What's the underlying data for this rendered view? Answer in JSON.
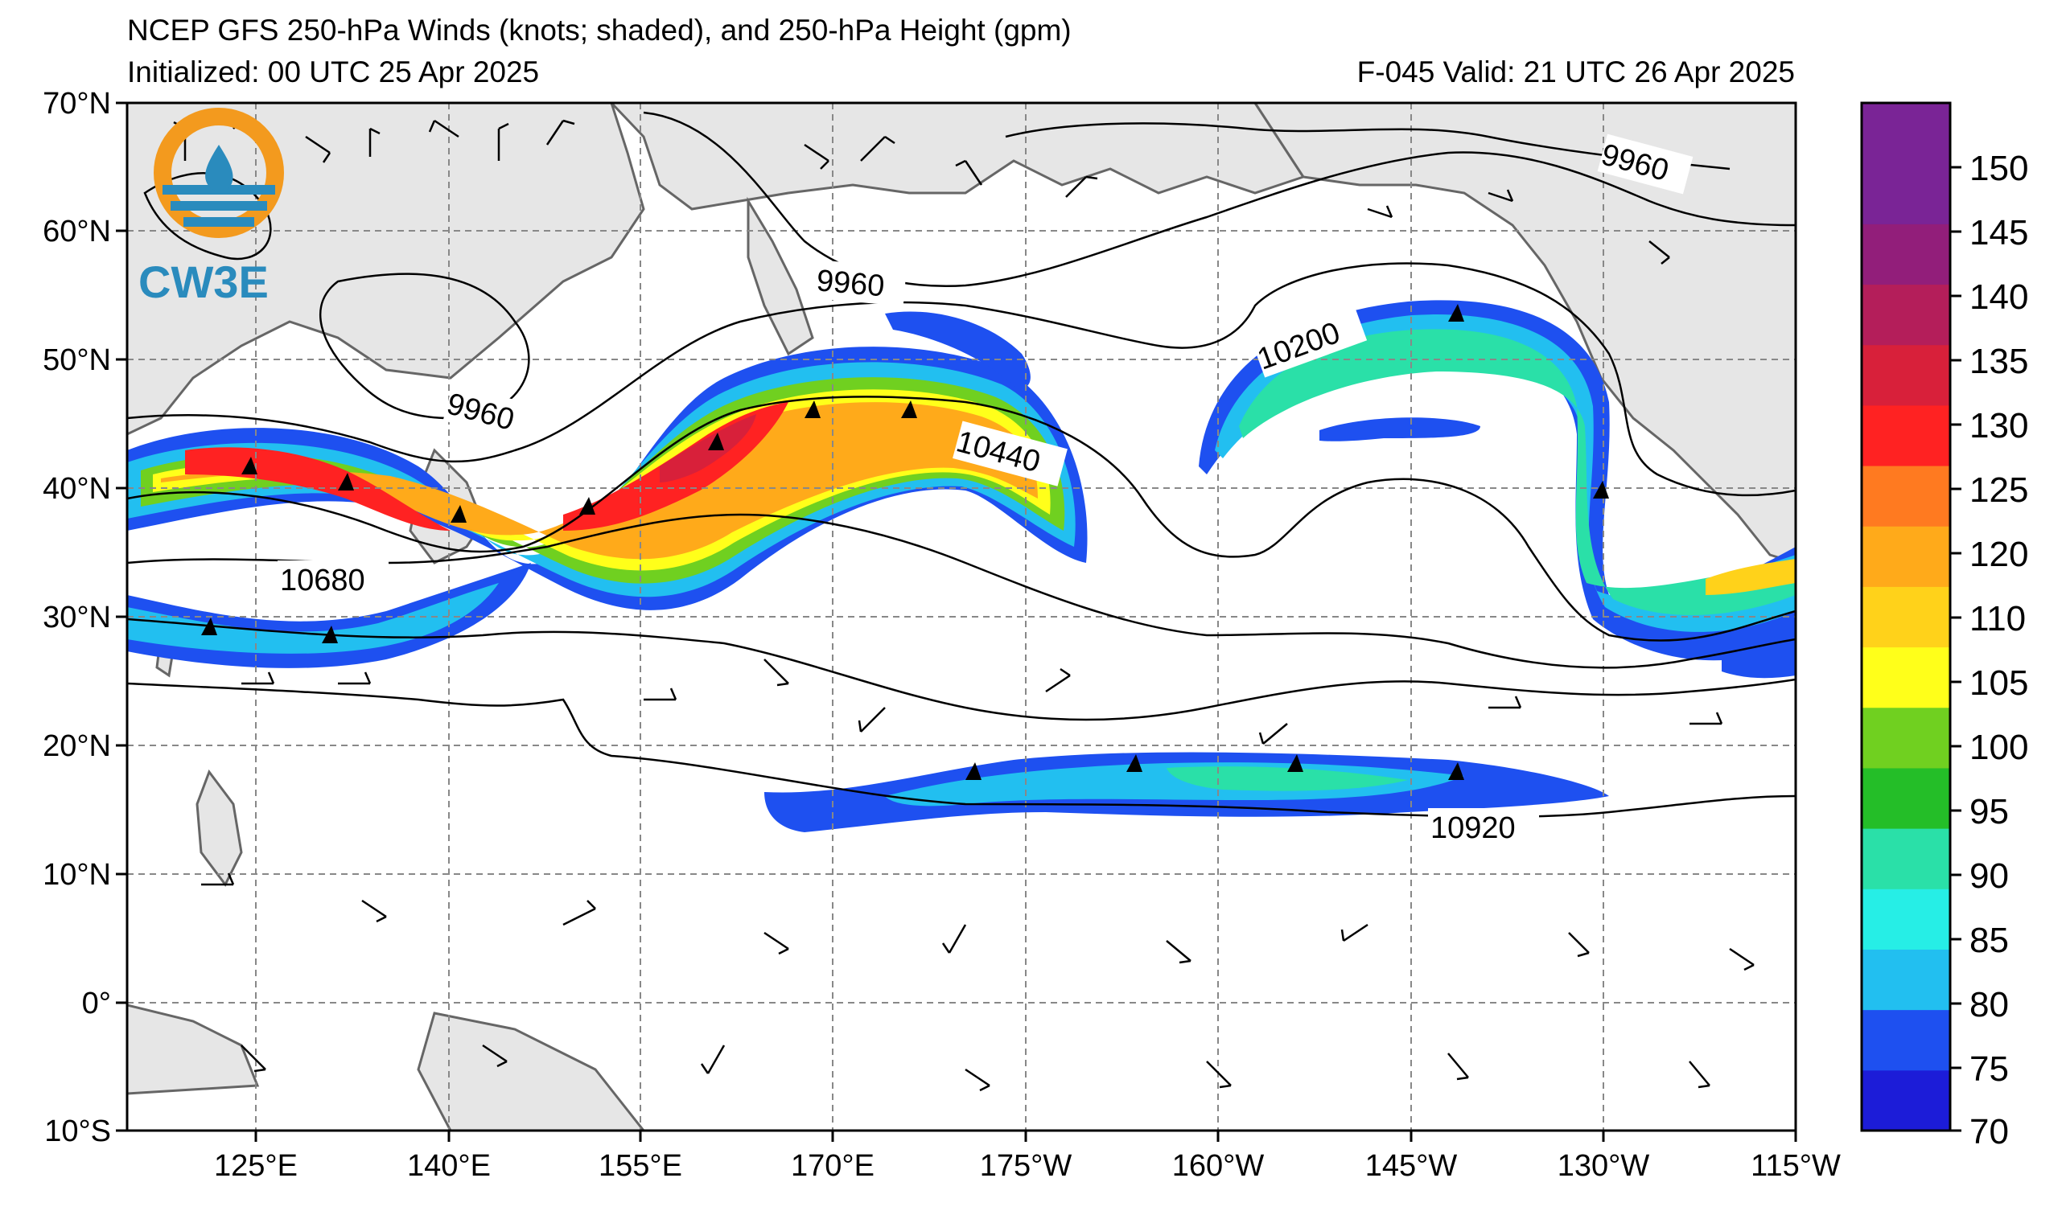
{
  "header": {
    "title": "NCEP GFS 250-hPa Winds (knots; shaded), and 250-hPa Height (gpm)",
    "initialized": "Initialized: 00 UTC 25 Apr 2025",
    "valid": "F-045  Valid: 21 UTC 26 Apr 2025"
  },
  "logo": {
    "text": "CW3E",
    "colors": {
      "ring": "#f39a1e",
      "wave": "#2a8bbd"
    }
  },
  "map": {
    "lat_labels": [
      "70°N",
      "60°N",
      "50°N",
      "40°N",
      "30°N",
      "20°N",
      "10°N",
      "0°",
      "10°S"
    ],
    "lon_labels": [
      "125°E",
      "140°E",
      "155°E",
      "170°E",
      "175°W",
      "160°W",
      "145°W",
      "130°W",
      "115°W"
    ],
    "land_color": "#e6e6e6",
    "coast_color": "#666666",
    "grid_color": "#888888"
  },
  "contour_labels": [
    "9960",
    "9960",
    "9960",
    "10200",
    "10440",
    "10680",
    "10920"
  ],
  "colorbar": {
    "ticks": [
      "150",
      "145",
      "140",
      "135",
      "130",
      "125",
      "120",
      "110",
      "105",
      "100",
      "95",
      "90",
      "85",
      "80",
      "75",
      "70"
    ],
    "levels": [
      70,
      75,
      80,
      85,
      90,
      95,
      100,
      105,
      110,
      115,
      120,
      125,
      130,
      135,
      140,
      145,
      150,
      155
    ],
    "colors": [
      "#1c1cd8",
      "#1e50f0",
      "#22bff0",
      "#26eee6",
      "#2ae0a8",
      "#24be28",
      "#70d020",
      "#ffff1a",
      "#ffd21a",
      "#ffaa1a",
      "#ff7a20",
      "#ff2222",
      "#d8203a",
      "#b41e5a",
      "#921e7a",
      "#7a2496",
      "#7a2496"
    ]
  }
}
